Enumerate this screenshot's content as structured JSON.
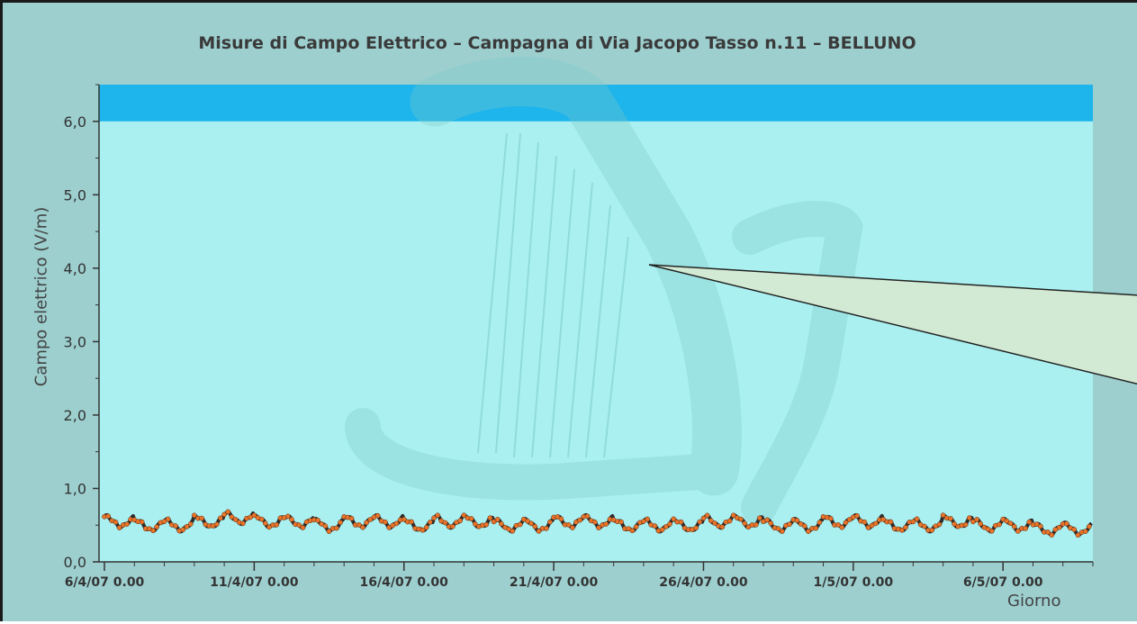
{
  "chart_data": {
    "type": "scatter",
    "title": "Misure di Campo Elettrico – Campagna di Via Jacopo Tasso n.11 – BELLUNO",
    "xlabel": "Giorno",
    "ylabel": "Campo elettrico (V/m)",
    "ylim": [
      0,
      6.5
    ],
    "y_ticks": [
      "0,0",
      "1,0",
      "2,0",
      "3,0",
      "4,0",
      "5,0",
      "6,0"
    ],
    "x_ticks": [
      "6/4/07 0.00",
      "11/4/07 0.00",
      "16/4/07 0.00",
      "21/4/07 0.00",
      "26/4/07 0.00",
      "1/5/07 0.00",
      "6/5/07 0.00"
    ],
    "x_range_days": [
      "2007-04-06",
      "2007-05-09"
    ],
    "limit_band": {
      "from": 6.0,
      "to": 6.5,
      "color": "#1eb4ec"
    },
    "plot_background": "#aaf0f0",
    "series": [
      {
        "marker_color": "#e8742a",
        "line_color": "#2d2d2d",
        "daily_mean": [
          0.55,
          0.5,
          0.5,
          0.55,
          0.6,
          0.55,
          0.55,
          0.5,
          0.55,
          0.55,
          0.5,
          0.55,
          0.55,
          0.5,
          0.5,
          0.55,
          0.55,
          0.5,
          0.5,
          0.5,
          0.55,
          0.55,
          0.5,
          0.5,
          0.55,
          0.55,
          0.5,
          0.5,
          0.55,
          0.5,
          0.5,
          0.45,
          0.45
        ],
        "range": [
          0.3,
          0.7
        ]
      }
    ]
  },
  "colors": {
    "frame": "#9dcfcf",
    "title_text": "#3a3a3a"
  }
}
